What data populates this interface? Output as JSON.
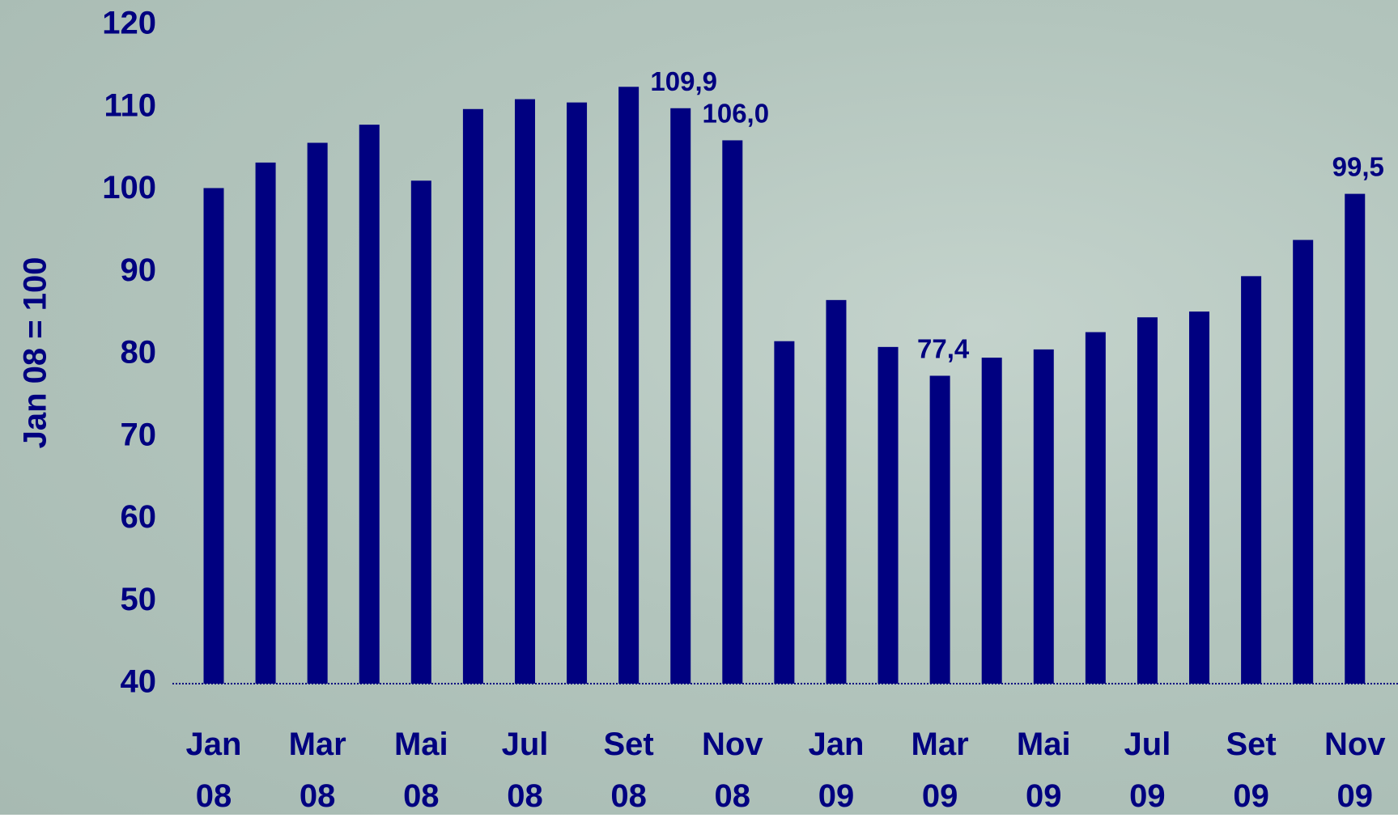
{
  "chart_data": {
    "type": "bar",
    "y_label": "Jan 08 = 100",
    "categories": [
      "Jan 08",
      null,
      "Mar 08",
      null,
      "Mai 08",
      null,
      "Jul 08",
      null,
      "Set 08",
      null,
      "Nov 08",
      null,
      "Jan 09",
      null,
      "Mar 09",
      null,
      "Mai 09",
      null,
      "Jul 09",
      null,
      "Set 09",
      null,
      "Nov 09"
    ],
    "values": [
      100.2,
      103.3,
      105.7,
      107.9,
      101.1,
      109.8,
      111.0,
      110.6,
      112.5,
      109.9,
      106.0,
      81.6,
      86.6,
      80.9,
      77.4,
      79.6,
      80.6,
      82.7,
      84.5,
      85.2,
      89.5,
      93.9,
      99.5
    ],
    "value_labels": [
      null,
      null,
      null,
      null,
      null,
      null,
      null,
      null,
      null,
      "109,9",
      "106,0",
      null,
      null,
      null,
      "77,4",
      null,
      null,
      null,
      null,
      null,
      null,
      null,
      "99,5"
    ],
    "color": "#000080",
    "ylim": [
      40,
      120
    ],
    "yticks": [
      40,
      50,
      60,
      70,
      80,
      90,
      100,
      110,
      120
    ]
  }
}
